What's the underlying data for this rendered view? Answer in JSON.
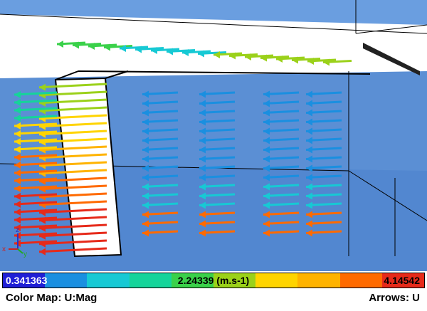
{
  "viewport": {
    "axis_labels": {
      "x": "x",
      "y": "y",
      "z": "z"
    }
  },
  "colorbar": {
    "min_label": "0.341363",
    "mid_label": "2.24339 (m.s-1)",
    "max_label": "4.14542",
    "colors": [
      "#1f1fd6",
      "#1a8fe0",
      "#17c9d4",
      "#15d49a",
      "#3ad14a",
      "#9bd11a",
      "#ffd400",
      "#ffb300",
      "#ff6a00",
      "#e62a1a"
    ]
  },
  "footer": {
    "color_map_label": "Color Map: U:Mag",
    "arrows_label": "Arrows: U"
  },
  "colors": {
    "floor": "#5b8fd4",
    "wall": "#4f86cc",
    "back_wall": "#6a9ee0",
    "outline": "#000000"
  }
}
